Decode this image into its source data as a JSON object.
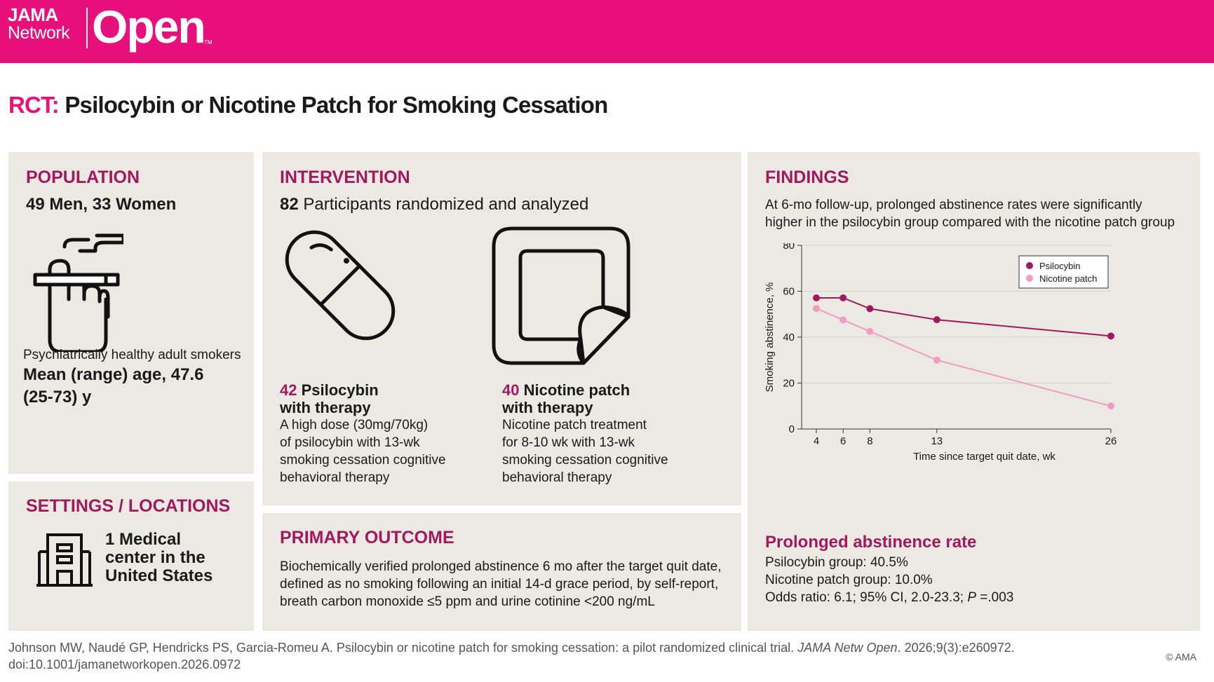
{
  "header": {
    "logo_jama": "JAMA",
    "logo_network": "Network",
    "logo_open": "Open",
    "logo_tm": "TM"
  },
  "title": {
    "prefix": "RCT:",
    "text": "Psilocybin or Nicotine Patch for Smoking Cessation"
  },
  "population": {
    "heading": "POPULATION",
    "counts": "49 Men, 33 Women",
    "icon": "smoking-hand-icon",
    "description": "Psychiatrically healthy adult smokers",
    "age_line1": "Mean (range) age, 47.6",
    "age_line2": "(25-73) y"
  },
  "settings": {
    "heading": "SETTINGS / LOCATIONS",
    "icon": "building-icon",
    "line1": "1 Medical",
    "line2": "center in the",
    "line3": "United States"
  },
  "intervention": {
    "heading": "INTERVENTION",
    "participants_num": "82",
    "participants_text": "Participants randomized and analyzed",
    "arm1": {
      "icon": "capsule-icon",
      "count": "42",
      "name": "Psilocybin",
      "name2": "with therapy",
      "desc1": "A high dose (30mg/70kg)",
      "desc2": "of psilocybin with 13-wk",
      "desc3": "smoking cessation cognitive",
      "desc4": "behavioral therapy"
    },
    "arm2": {
      "icon": "patch-icon",
      "count": "40",
      "name": "Nicotine patch",
      "name2": "with therapy",
      "desc1": "Nicotine patch treatment",
      "desc2": "for 8-10 wk with 13-wk",
      "desc3": "smoking cessation cognitive",
      "desc4": "behavioral therapy"
    }
  },
  "primary_outcome": {
    "heading": "PRIMARY OUTCOME",
    "line1": "Biochemically verified prolonged abstinence 6 mo after the target quit date,",
    "line2": "defined as no smoking following an initial 14-d grace period, by self-report,",
    "line3": "breath carbon monoxide ≤5 ppm and urine cotinine <200 ng/mL"
  },
  "findings": {
    "heading": "FINDINGS",
    "summary1": "At 6-mo follow-up, prolonged abstinence rates were significantly",
    "summary2": "higher in the psilocybin group compared with the nicotine patch group",
    "rate_heading": "Prolonged abstinence rate",
    "rate1": "Psilocybin group: 40.5%",
    "rate2": "Nicotine patch group: 10.0%",
    "odds_prefix": "Odds ratio: 6.1; 95% CI, 2.0-23.3; ",
    "odds_p": "P",
    "odds_suffix": " =.003"
  },
  "chart_data": {
    "type": "line",
    "xlabel": "Time since target quit date, wk",
    "ylabel": "Smoking abstinence, %",
    "x": [
      4,
      6,
      8,
      13,
      26
    ],
    "xticks": [
      4,
      6,
      8,
      13,
      26
    ],
    "yticks": [
      0,
      20,
      40,
      60,
      80
    ],
    "xlim": [
      2.9,
      26
    ],
    "ylim": [
      0,
      80
    ],
    "grid": true,
    "legend": "top-right",
    "series": [
      {
        "name": "Psilocybin",
        "color": "#a0195f",
        "values": [
          57.1,
          57.1,
          52.4,
          47.6,
          40.5
        ]
      },
      {
        "name": "Nicotine patch",
        "color": "#f29bc5",
        "values": [
          52.5,
          47.5,
          42.5,
          30.0,
          10.0
        ]
      }
    ]
  },
  "footer": {
    "citation": "Johnson MW, Naudé GP, Hendricks PS, Garcia-Romeu A. Psilocybin or nicotine patch for smoking cessation: a pilot randomized clinical trial. ",
    "journal": "JAMA Netw Open",
    "volume": ". 2026;9(3):e260972.",
    "doi": "doi:10.1001/jamanetworkopen.2026.0972",
    "copyright": "© AMA"
  },
  "colors": {
    "brand": "#e8107b",
    "accent": "#a0195f",
    "panel": "#ebe9e1"
  }
}
